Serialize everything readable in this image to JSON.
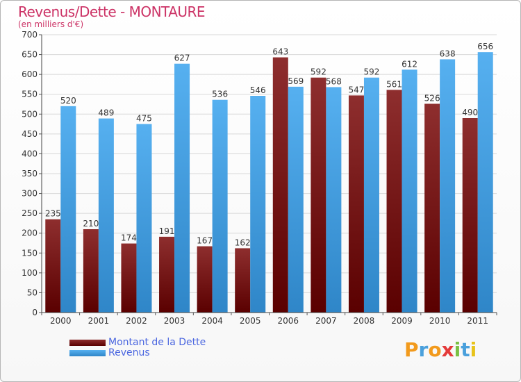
{
  "chart_data": {
    "type": "bar",
    "title": "Revenus/Dette - MONTAURE",
    "subtitle": "(en milliers d'€)",
    "categories": [
      "2000",
      "2001",
      "2002",
      "2003",
      "2004",
      "2005",
      "2006",
      "2007",
      "2008",
      "2009",
      "2010",
      "2011"
    ],
    "series": [
      {
        "name": "Montant de la Dette",
        "color": "#7a1515",
        "values": [
          235,
          210,
          174,
          191,
          167,
          162,
          643,
          592,
          547,
          561,
          526,
          490
        ]
      },
      {
        "name": "Revenus",
        "color": "#4aa8ec",
        "values": [
          520,
          489,
          475,
          627,
          536,
          546,
          569,
          568,
          592,
          612,
          638,
          656
        ]
      }
    ],
    "ylim": [
      0,
      700
    ],
    "yticks": [
      0,
      50,
      100,
      150,
      200,
      250,
      300,
      350,
      400,
      450,
      500,
      550,
      600,
      650,
      700
    ],
    "grid": true,
    "legend_position": "bottom-left"
  },
  "logo": {
    "letters": [
      "P",
      "r",
      "o",
      "x",
      "i",
      "t",
      "i"
    ],
    "colors": [
      "#f29a1c",
      "#4aa0dc",
      "#f29a1c",
      "#e43a3a",
      "#7ac043",
      "#4aa0dc",
      "#e8c31a"
    ]
  }
}
